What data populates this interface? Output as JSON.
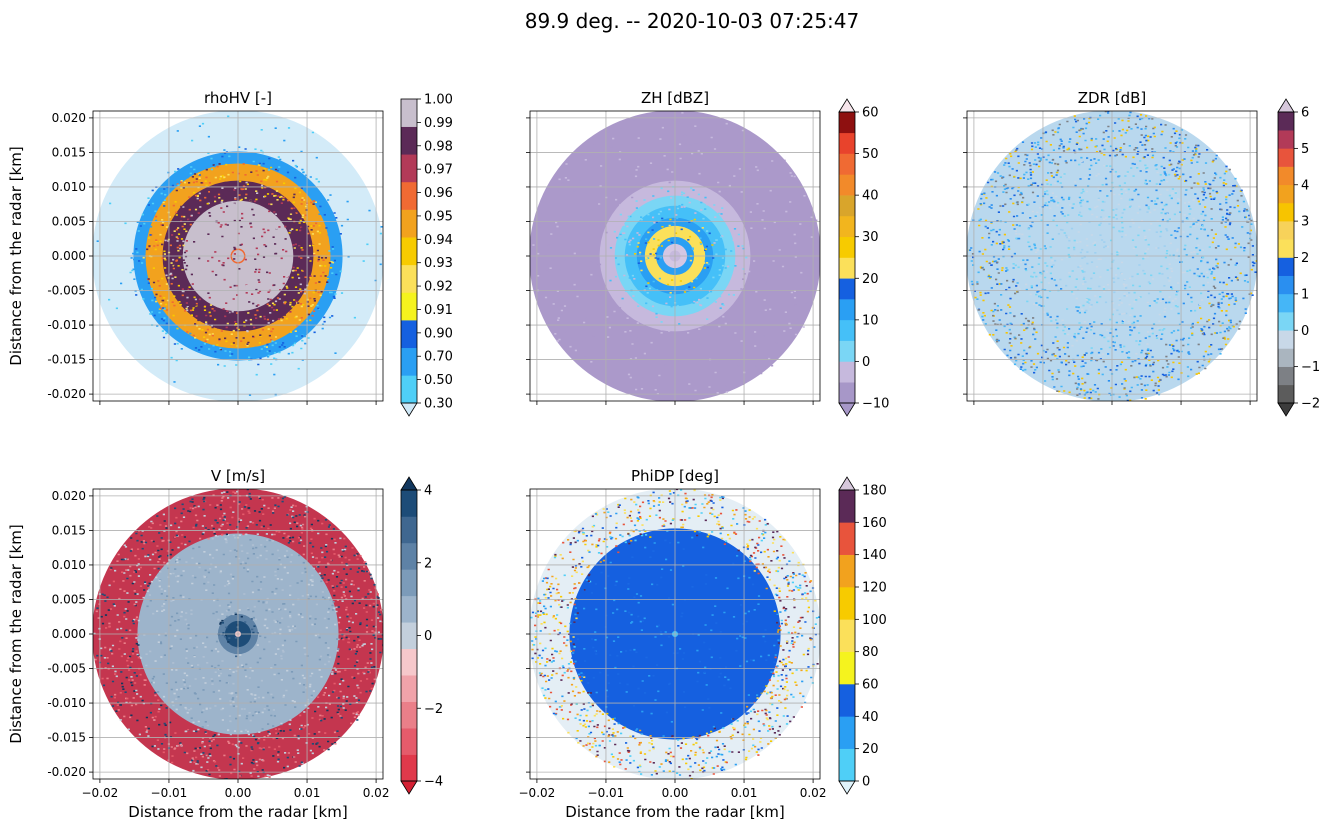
{
  "figure_title": "89.9 deg. -- 2020-10-03 07:25:47",
  "chart_data": [
    {
      "type": "heatmap",
      "title": "rhoHV [-]",
      "xlabel": "",
      "ylabel": "Distance from the radar [km]",
      "xlim": [
        -0.021,
        0.021
      ],
      "ylim": [
        -0.021,
        0.021
      ],
      "grid": true,
      "xticks": [
        "",
        "",
        "",
        "",
        ""
      ],
      "yticks": [
        "-0.020",
        "-0.015",
        "-0.010",
        "-0.005",
        "0.000",
        "0.005",
        "0.010",
        "0.015",
        "0.020"
      ],
      "colorbar": {
        "ticks": [
          "0.30",
          "0.50",
          "0.70",
          "0.90",
          "0.91",
          "0.92",
          "0.93",
          "0.94",
          "0.95",
          "0.96",
          "0.97",
          "0.98",
          "0.99",
          "1.00"
        ],
        "colors": [
          "#4fcff7",
          "#2a9ff3",
          "#1560e0",
          "#f5f31e",
          "#fbe05a",
          "#f7cb00",
          "#f2a21e",
          "#f06a33",
          "#b23a58",
          "#5b2a57",
          "#c8bfcd"
        ],
        "extend": "min",
        "under": "#cfe8f7",
        "over": null
      },
      "field": {
        "rings": [
          [
            0.0,
            0.004,
            "#4fcff7"
          ],
          [
            0.004,
            0.06,
            "#c8bfcd"
          ],
          [
            0.06,
            0.075,
            "#f06a33"
          ],
          [
            0.075,
            0.55,
            "#c8bfcd"
          ],
          [
            0.55,
            0.75,
            "#5b2a57"
          ],
          [
            0.75,
            0.92,
            "#f2a21e"
          ],
          [
            0.92,
            1.04,
            "#2a9ff3"
          ],
          [
            1.04,
            1.45,
            "#d3ebf8"
          ]
        ],
        "noise": [
          [
            0.0,
            0.75,
            [
              "#5b2a57",
              "#c8bfcd",
              "#b23a58"
            ],
            0.35
          ],
          [
            0.55,
            0.95,
            [
              "#f7cb00",
              "#f06a33",
              "#fbe05a",
              "#5b2a57"
            ],
            0.5
          ],
          [
            0.9,
            1.1,
            [
              "#1560e0",
              "#4fcff7",
              "#2a9ff3"
            ],
            0.35
          ],
          [
            1.05,
            1.45,
            [
              "#4fcff7",
              "#2a9ff3"
            ],
            0.03
          ]
        ]
      }
    },
    {
      "type": "heatmap",
      "title": "ZH [dBZ]",
      "xlabel": "",
      "ylabel": "",
      "xlim": [
        -0.021,
        0.021
      ],
      "ylim": [
        -0.021,
        0.021
      ],
      "grid": true,
      "xticks": [
        "",
        "",
        "",
        "",
        ""
      ],
      "yticks": [
        "",
        "",
        "",
        "",
        "",
        "",
        "",
        "",
        ""
      ],
      "colorbar": {
        "ticks": [
          "−10",
          "0",
          "10",
          "20",
          "30",
          "40",
          "50",
          "60"
        ],
        "colors": [
          "#a797c8",
          "#c6b9dd",
          "#7ad6f5",
          "#45c0f8",
          "#2a9ff3",
          "#1560e0",
          "#fbe05a",
          "#f7cb00",
          "#f2b51e",
          "#d9a52b",
          "#f28a2a",
          "#f06a33",
          "#e8432c",
          "#8e1010"
        ],
        "extend": "both",
        "under": "#a797c8",
        "over": "#f7e6ec"
      },
      "field": {
        "rings": [
          [
            0.0,
            0.055,
            "#c6b9dd"
          ],
          [
            0.055,
            0.12,
            "#d4c7e3"
          ],
          [
            0.12,
            0.19,
            "#2a9ff3"
          ],
          [
            0.19,
            0.3,
            "#fbe05a"
          ],
          [
            0.3,
            0.38,
            "#2a9ff3"
          ],
          [
            0.38,
            0.5,
            "#45c0f8"
          ],
          [
            0.5,
            0.6,
            "#7ad6f5"
          ],
          [
            0.6,
            0.75,
            "#c6b9dd"
          ],
          [
            0.75,
            1.45,
            "#ab99ca"
          ]
        ],
        "noise": [
          [
            0.12,
            0.42,
            [
              "#1560e0",
              "#f7cb00",
              "#fbe05a",
              "#45c0f8"
            ],
            0.35
          ],
          [
            0.4,
            0.7,
            [
              "#c6b9dd",
              "#7ad6f5",
              "#45c0f8"
            ],
            0.35
          ],
          [
            0.7,
            1.45,
            [
              "#c6b9dd",
              "#ab99ca"
            ],
            0.12
          ]
        ]
      }
    },
    {
      "type": "heatmap",
      "title": "ZDR [dB]",
      "xlabel": "",
      "ylabel": "",
      "xlim": [
        -0.021,
        0.021
      ],
      "ylim": [
        -0.021,
        0.021
      ],
      "grid": true,
      "xticks": [
        "",
        "",
        "",
        "",
        ""
      ],
      "yticks": [
        "",
        "",
        "",
        "",
        "",
        "",
        "",
        "",
        ""
      ],
      "colorbar": {
        "ticks": [
          "−2",
          "−1",
          "0",
          "1",
          "2",
          "3",
          "4",
          "5",
          "6"
        ],
        "colors": [
          "#5c5c5c",
          "#7d8085",
          "#aab5bf",
          "#c8d8e8",
          "#7ad6f5",
          "#45b6f7",
          "#2a8ff0",
          "#1560e0",
          "#fbe05a",
          "#f7d25a",
          "#f7c400",
          "#f2a21e",
          "#f28a2a",
          "#e8543c",
          "#b23a58",
          "#5b2a57"
        ],
        "extend": "both",
        "under": "#3c3c3c",
        "over": "#d7c8dc"
      },
      "field": {
        "rings": [
          [
            0.0,
            1.45,
            "#b9d8ee"
          ]
        ],
        "noise": [
          [
            0.0,
            0.6,
            [
              "#c8d8e8",
              "#9fd0f0",
              "#7ad6f5"
            ],
            0.45
          ],
          [
            0.6,
            1.0,
            [
              "#7ad6f5",
              "#45b6f7",
              "#2a8ff0",
              "#c8d8e8"
            ],
            0.55
          ],
          [
            1.0,
            1.45,
            [
              "#2a8ff0",
              "#1560e0",
              "#45b6f7",
              "#7d8085",
              "#f7c400"
            ],
            0.6
          ]
        ]
      }
    },
    {
      "type": "heatmap",
      "title": "V [m/s]",
      "xlabel": "Distance from the radar [km]",
      "ylabel": "Distance from the radar [km]",
      "xlim": [
        -0.021,
        0.021
      ],
      "ylim": [
        -0.021,
        0.021
      ],
      "grid": true,
      "xticks": [
        "−0.02",
        "−0.01",
        "0.00",
        "0.01",
        "0.02"
      ],
      "yticks": [
        "-0.020",
        "-0.015",
        "-0.010",
        "-0.005",
        "0.000",
        "0.005",
        "0.010",
        "0.015",
        "0.020"
      ],
      "colorbar": {
        "ticks": [
          "−4",
          "−2",
          "0",
          "2",
          "4"
        ],
        "colors": [
          "#e0394b",
          "#e55b6b",
          "#ea7f89",
          "#f0a3aa",
          "#f6c8cb",
          "#c3cfdc",
          "#9db4cb",
          "#7c9bb9",
          "#5e82a6",
          "#3f6790",
          "#1d4c78"
        ],
        "extend": "both",
        "under": "#d42033",
        "over": "#12375e"
      },
      "field": {
        "rings": [
          [
            0.0,
            0.03,
            "#f6c8cb"
          ],
          [
            0.03,
            0.13,
            "#1d4c78"
          ],
          [
            0.13,
            0.2,
            "#5e82a6"
          ],
          [
            0.2,
            1.0,
            "#9db4cb"
          ],
          [
            1.0,
            1.45,
            "#c4364f"
          ]
        ],
        "noise": [
          [
            0.03,
            0.22,
            [
              "#12375e",
              "#3f6790",
              "#1d4c78"
            ],
            0.4
          ],
          [
            0.2,
            1.02,
            [
              "#c3cfdc",
              "#7c9bb9",
              "#aebfd2"
            ],
            0.35
          ],
          [
            1.0,
            1.45,
            [
              "#1d4c78",
              "#12375e",
              "#e55b6b",
              "#ea7f89",
              "#c3cfdc"
            ],
            0.55
          ]
        ]
      }
    },
    {
      "type": "heatmap",
      "title": "PhiDP [deg]",
      "xlabel": "Distance from the radar [km]",
      "ylabel": "",
      "xlim": [
        -0.021,
        0.021
      ],
      "ylim": [
        -0.021,
        0.021
      ],
      "grid": true,
      "xticks": [
        "−0.02",
        "−0.01",
        "0.00",
        "0.01",
        "0.02"
      ],
      "yticks": [
        "",
        "",
        "",
        "",
        "",
        "",
        "",
        "",
        ""
      ],
      "colorbar": {
        "ticks": [
          "0",
          "20",
          "40",
          "60",
          "80",
          "100",
          "120",
          "140",
          "160",
          "180"
        ],
        "colors": [
          "#4fcff7",
          "#2a9ff3",
          "#1560e0",
          "#f5f31e",
          "#fbe05a",
          "#f7cb00",
          "#f2a21e",
          "#e8543c",
          "#5b2a57"
        ],
        "extend": "both",
        "under": "#dff3fb",
        "over": "#d7c8dc"
      },
      "field": {
        "rings": [
          [
            0.0,
            0.03,
            "#45c0f8"
          ],
          [
            0.03,
            1.05,
            "#1560e0"
          ],
          [
            1.05,
            1.45,
            "#e4eef5"
          ]
        ],
        "noise": [
          [
            0.0,
            1.05,
            [
              "#2a9ff3",
              "#1a68e3"
            ],
            0.12
          ],
          [
            1.0,
            1.45,
            [
              "#f7cb00",
              "#fbe05a",
              "#2a9ff3",
              "#1560e0",
              "#f2a21e",
              "#5b2a57",
              "#e8543c",
              "#4fcff7"
            ],
            0.6
          ]
        ]
      }
    }
  ]
}
